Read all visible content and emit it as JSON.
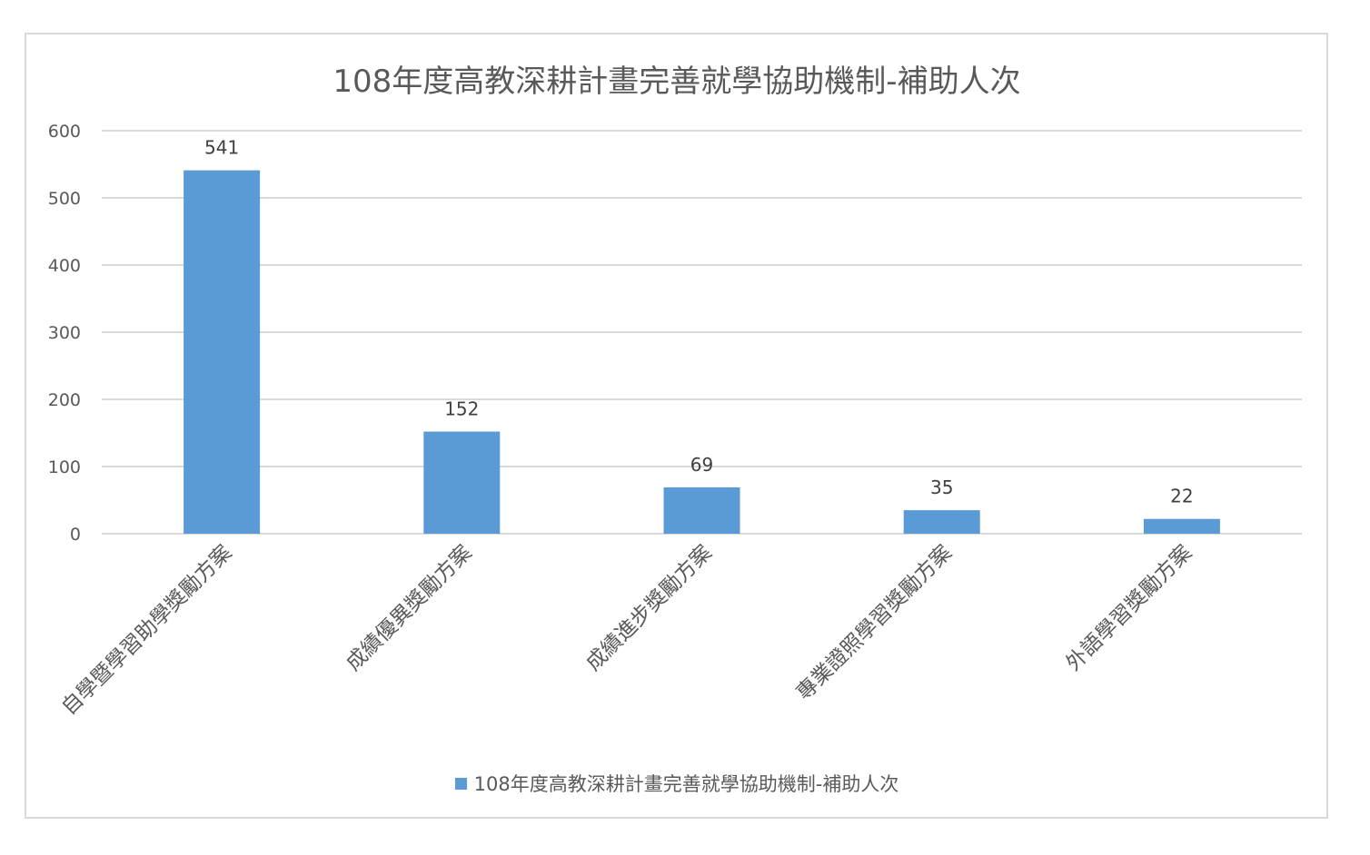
{
  "chart_data": {
    "type": "bar",
    "title": "108年度高教深耕計畫完善就學協助機制-補助人次",
    "categories": [
      "自學暨學習助學獎勵方案",
      "成績優異獎勵方案",
      "成績進步獎勵方案",
      "專業證照學習獎勵方案",
      "外語學習獎勵方案"
    ],
    "series": [
      {
        "name": "108年度高教深耕計畫完善就學協助機制-補助人次",
        "values": [
          541,
          152,
          69,
          35,
          22
        ]
      }
    ],
    "ylim": [
      0,
      600
    ],
    "yticks": [
      0,
      100,
      200,
      300,
      400,
      500,
      600
    ],
    "grid": true,
    "legend": "bottom",
    "bar_color": "#5b9bd5",
    "gridline_color": "#d9d9d9"
  }
}
